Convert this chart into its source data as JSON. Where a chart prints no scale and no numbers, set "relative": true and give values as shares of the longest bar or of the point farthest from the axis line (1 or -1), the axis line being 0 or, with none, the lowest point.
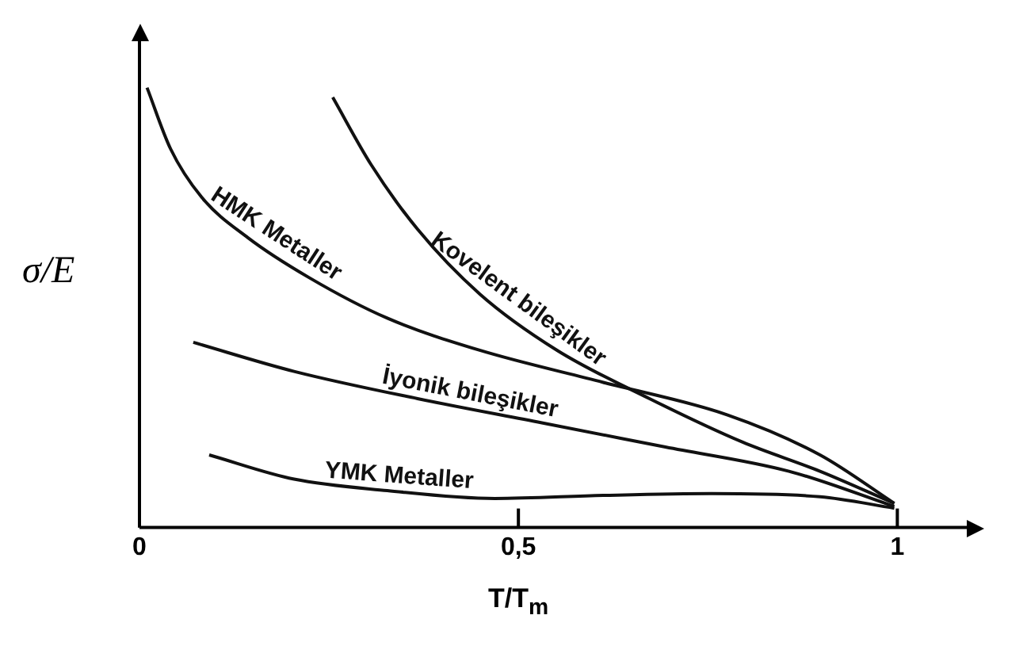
{
  "chart_data": {
    "type": "line",
    "xlabel": "T/T$_{m}$",
    "ylabel": "σ/E",
    "relative": true,
    "xlim": [
      0,
      1.1
    ],
    "xticks": [
      0,
      {
        "value": 0.5,
        "label": "0,5"
      },
      1
    ],
    "grid": false,
    "legend": false,
    "marker": "none",
    "line_style": "solid",
    "series": [
      {
        "name": "HMK Metaller",
        "color": "#111111",
        "x": [
          0.01,
          0.041,
          0.082,
          0.143,
          0.224,
          0.327,
          0.449,
          0.612,
          0.776,
          0.898,
          0.996
        ],
        "values": [
          1.0,
          0.861,
          0.751,
          0.659,
          0.568,
          0.476,
          0.403,
          0.33,
          0.256,
          0.165,
          0.055
        ]
      },
      {
        "name": "Kovelent bileşikler",
        "color": "#111111",
        "x": [
          0.255,
          0.306,
          0.367,
          0.449,
          0.551,
          0.673,
          0.796,
          0.898,
          0.996
        ],
        "values": [
          0.978,
          0.824,
          0.678,
          0.531,
          0.403,
          0.293,
          0.194,
          0.128,
          0.055
        ]
      },
      {
        "name": "İyonik bileşikler",
        "color": "#111111",
        "x": [
          0.071,
          0.204,
          0.367,
          0.531,
          0.694,
          0.857,
          0.996
        ],
        "values": [
          0.421,
          0.355,
          0.293,
          0.238,
          0.183,
          0.128,
          0.048
        ]
      },
      {
        "name": "YMK Metaller",
        "color": "#111111",
        "x": [
          0.092,
          0.204,
          0.327,
          0.469,
          0.612,
          0.755,
          0.898,
          0.996
        ],
        "values": [
          0.165,
          0.11,
          0.084,
          0.066,
          0.073,
          0.077,
          0.07,
          0.044
        ]
      }
    ]
  }
}
